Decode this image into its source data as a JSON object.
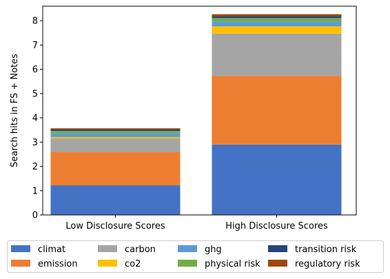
{
  "chart_data": {
    "type": "bar",
    "stacked": true,
    "title": "",
    "xlabel": "",
    "ylabel": "Search hits in FS + Notes",
    "ylim": [
      0,
      8.6
    ],
    "yticks": [
      0,
      1,
      2,
      3,
      4,
      5,
      6,
      7,
      8
    ],
    "categories": [
      "Low Disclosure Scores",
      "High Disclosure Scores"
    ],
    "legend_position": "bottom",
    "grid": false,
    "series": [
      {
        "name": "climat",
        "color": "#4472C4",
        "values": [
          1.22,
          2.9
        ]
      },
      {
        "name": "emission",
        "color": "#ED7D31",
        "values": [
          1.38,
          2.83
        ]
      },
      {
        "name": "carbon",
        "color": "#A5A5A5",
        "values": [
          0.55,
          1.74
        ]
      },
      {
        "name": "co2",
        "color": "#FFC000",
        "values": [
          0.06,
          0.3
        ]
      },
      {
        "name": "ghg",
        "color": "#5B9BD5",
        "values": [
          0.15,
          0.2
        ]
      },
      {
        "name": "physical risk",
        "color": "#70AD47",
        "values": [
          0.1,
          0.14
        ]
      },
      {
        "name": "transition risk",
        "color": "#264478",
        "values": [
          0.06,
          0.08
        ]
      },
      {
        "name": "regulatory risk",
        "color": "#9E480E",
        "values": [
          0.05,
          0.08
        ]
      }
    ]
  }
}
